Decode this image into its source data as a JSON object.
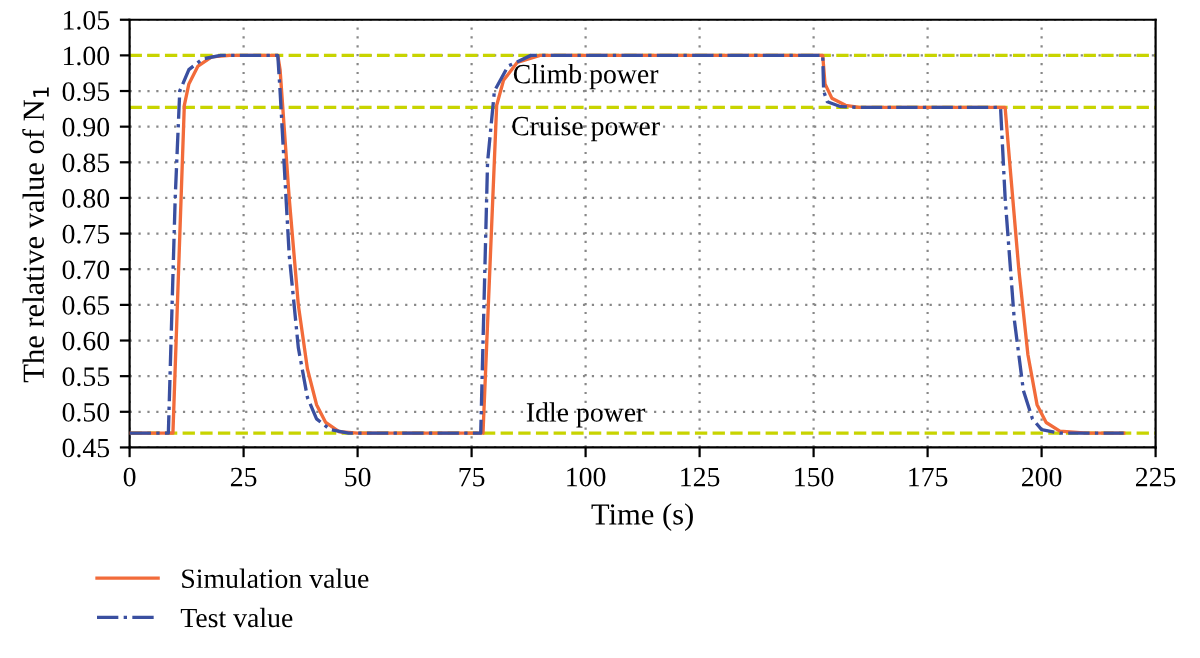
{
  "chart_data": {
    "type": "line",
    "xlabel": "Time (s)",
    "ylabel": "The relative value of N$_{1}$",
    "xlim": [
      0,
      225
    ],
    "xticks": [
      0,
      25,
      50,
      75,
      100,
      125,
      150,
      175,
      200,
      225
    ],
    "ylim": [
      0.45,
      1.05
    ],
    "yticks": [
      {
        "value": 0.45,
        "label": "0.45"
      },
      {
        "value": 0.5,
        "label": "0.50"
      },
      {
        "value": 0.55,
        "label": "0.55"
      },
      {
        "value": 0.6,
        "label": "0.60"
      },
      {
        "value": 0.65,
        "label": "0.65"
      },
      {
        "value": 0.7,
        "label": "0.70"
      },
      {
        "value": 0.75,
        "label": "0.75"
      },
      {
        "value": 0.8,
        "label": "0.80"
      },
      {
        "value": 0.85,
        "label": "0.85"
      },
      {
        "value": 0.9,
        "label": "0.90"
      },
      {
        "value": 0.95,
        "label": "0.95"
      },
      {
        "value": 1.0,
        "label": "1.00"
      },
      {
        "value": 1.05,
        "label": "1.05"
      }
    ],
    "grid": true,
    "legend": "bottom left",
    "marker": "none",
    "ref_lines": [
      {
        "axis": "y",
        "value": 1.0,
        "label": "Climb power",
        "color": "#c8d400",
        "line_style": "dashed"
      },
      {
        "axis": "y",
        "value": 0.927,
        "label": "Cruise power",
        "color": "#c8d400",
        "line_style": "dashed"
      },
      {
        "axis": "y",
        "value": 0.47,
        "label": "Idle power",
        "color": "#c8d400",
        "line_style": "dashed"
      }
    ],
    "series": [
      {
        "name": "Simulation value",
        "color": "#f26b3a",
        "line_style": "solid",
        "x": [
          0,
          9.5,
          12,
          13,
          15,
          18,
          22,
          32.5,
          33,
          35,
          37,
          39,
          41,
          43,
          46,
          50,
          77.5,
          80.5,
          82,
          85,
          90,
          152,
          152.5,
          154,
          157,
          160,
          192,
          193,
          195,
          197,
          199,
          201,
          204,
          210,
          218
        ],
        "values": [
          0.47,
          0.47,
          0.93,
          0.96,
          0.985,
          0.998,
          1.0,
          1.0,
          0.98,
          0.8,
          0.65,
          0.56,
          0.51,
          0.485,
          0.472,
          0.47,
          0.47,
          0.93,
          0.965,
          0.99,
          1.0,
          1.0,
          0.96,
          0.94,
          0.93,
          0.927,
          0.927,
          0.85,
          0.7,
          0.58,
          0.51,
          0.485,
          0.473,
          0.47,
          0.47
        ]
      },
      {
        "name": "Test value",
        "color": "#3a4fa0",
        "line_style": "dashdot",
        "x": [
          0,
          8.5,
          10,
          11,
          13,
          16,
          20,
          32.5,
          33,
          35,
          37,
          39,
          41,
          44,
          48,
          77,
          78.5,
          80,
          83,
          88,
          152,
          152.2,
          153,
          156,
          160,
          191,
          192,
          194,
          196,
          198,
          200,
          204,
          218
        ],
        "values": [
          0.47,
          0.47,
          0.8,
          0.95,
          0.98,
          0.995,
          1.0,
          1.0,
          0.95,
          0.72,
          0.59,
          0.52,
          0.49,
          0.475,
          0.47,
          0.47,
          0.85,
          0.95,
          0.985,
          1.0,
          1.0,
          0.95,
          0.935,
          0.928,
          0.927,
          0.927,
          0.8,
          0.63,
          0.53,
          0.49,
          0.475,
          0.47,
          0.47
        ]
      }
    ]
  }
}
